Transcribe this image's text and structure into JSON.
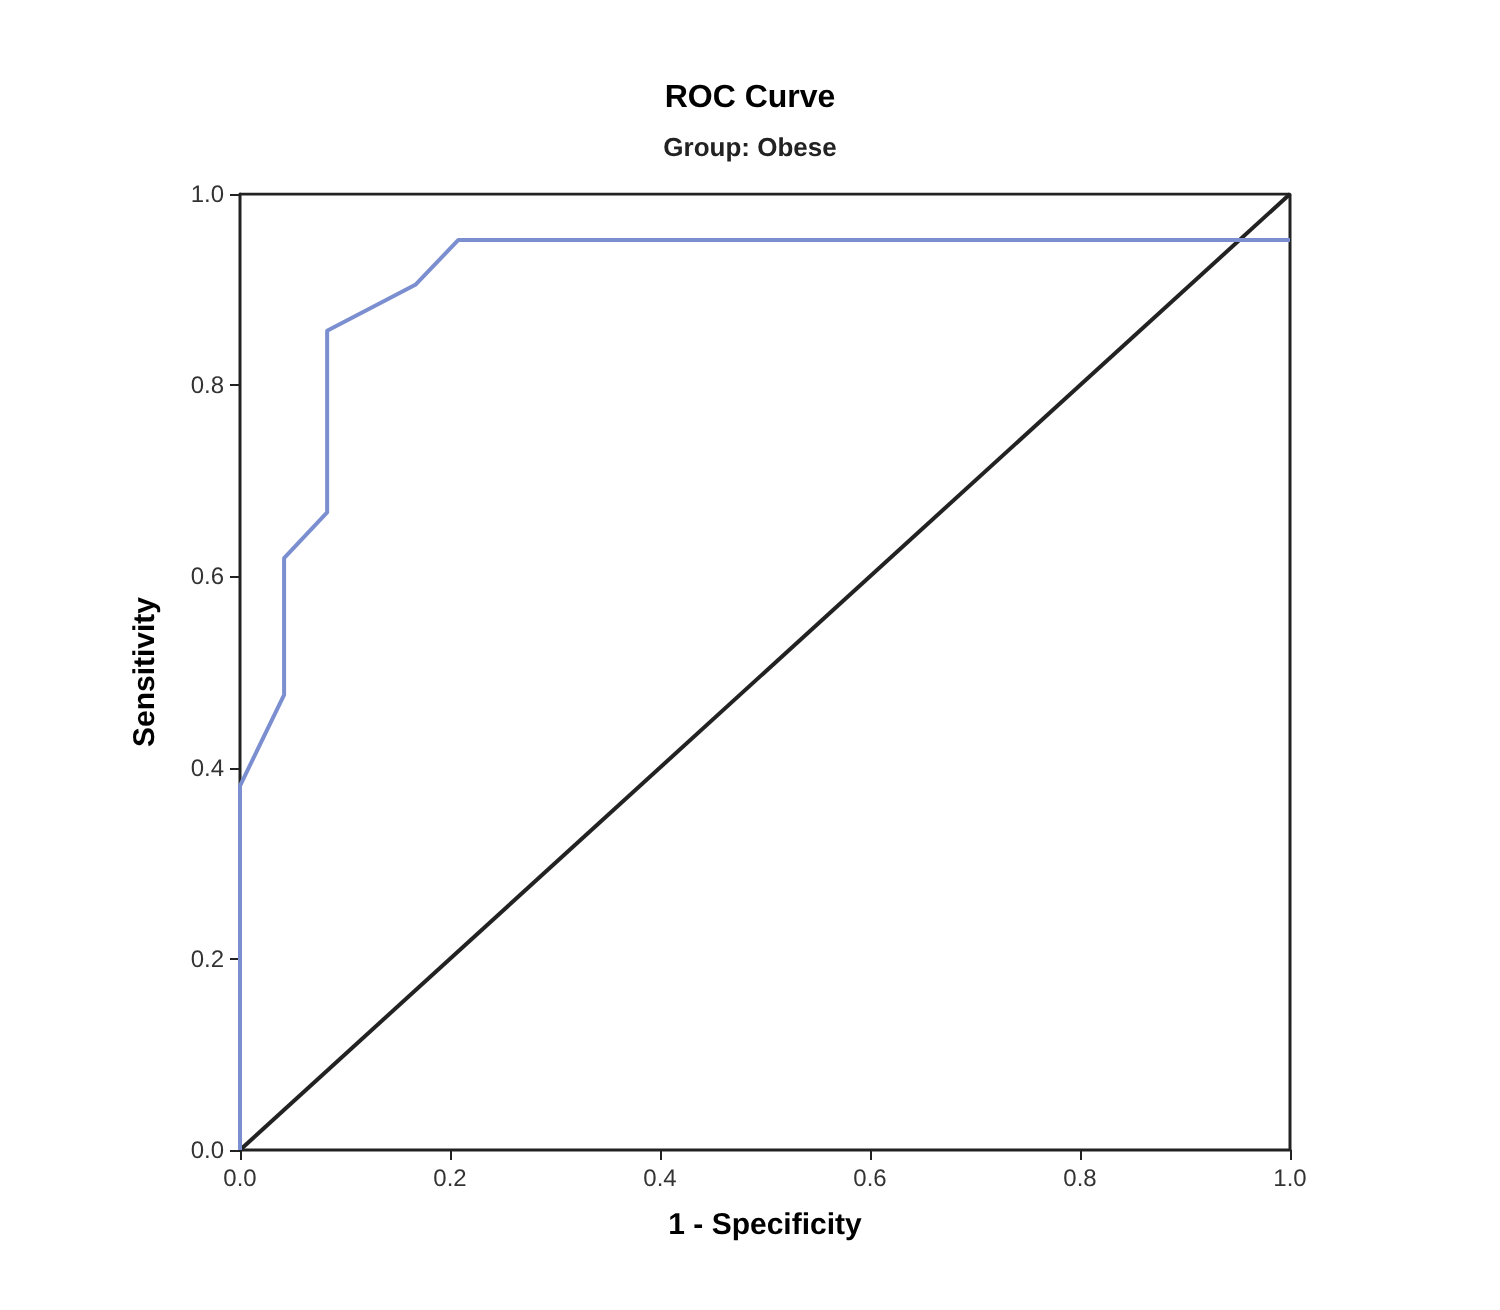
{
  "chart_data": {
    "type": "line",
    "title": "ROC Curve",
    "subtitle": "Group: Obese",
    "xlabel": "1 - Specificity",
    "ylabel": "Sensitivity",
    "series": [
      {
        "color": "#7b8fd0",
        "x": [
          0,
          0,
          0.042,
          0.042,
          0.083,
          0.083,
          0.167,
          0.208,
          1
        ],
        "values": [
          0,
          0.381,
          0.476,
          0.619,
          0.667,
          0.857,
          0.905,
          0.952,
          0.952
        ]
      },
      {
        "color": "#222222",
        "x": [
          0,
          1
        ],
        "values": [
          0,
          1
        ]
      }
    ],
    "xlim": [
      0,
      1
    ],
    "ylim": [
      0,
      1
    ],
    "xticks": [
      {
        "value": 0,
        "label": "0.0"
      },
      0.2,
      0.4,
      0.6,
      0.8,
      {
        "value": 1,
        "label": "1.0"
      }
    ],
    "yticks": [
      {
        "value": 0,
        "label": "0.0"
      },
      0.2,
      0.4,
      0.6,
      0.8,
      {
        "value": 1,
        "label": "1.0"
      }
    ],
    "grid": false,
    "marker": "none",
    "line_style": "solid"
  }
}
